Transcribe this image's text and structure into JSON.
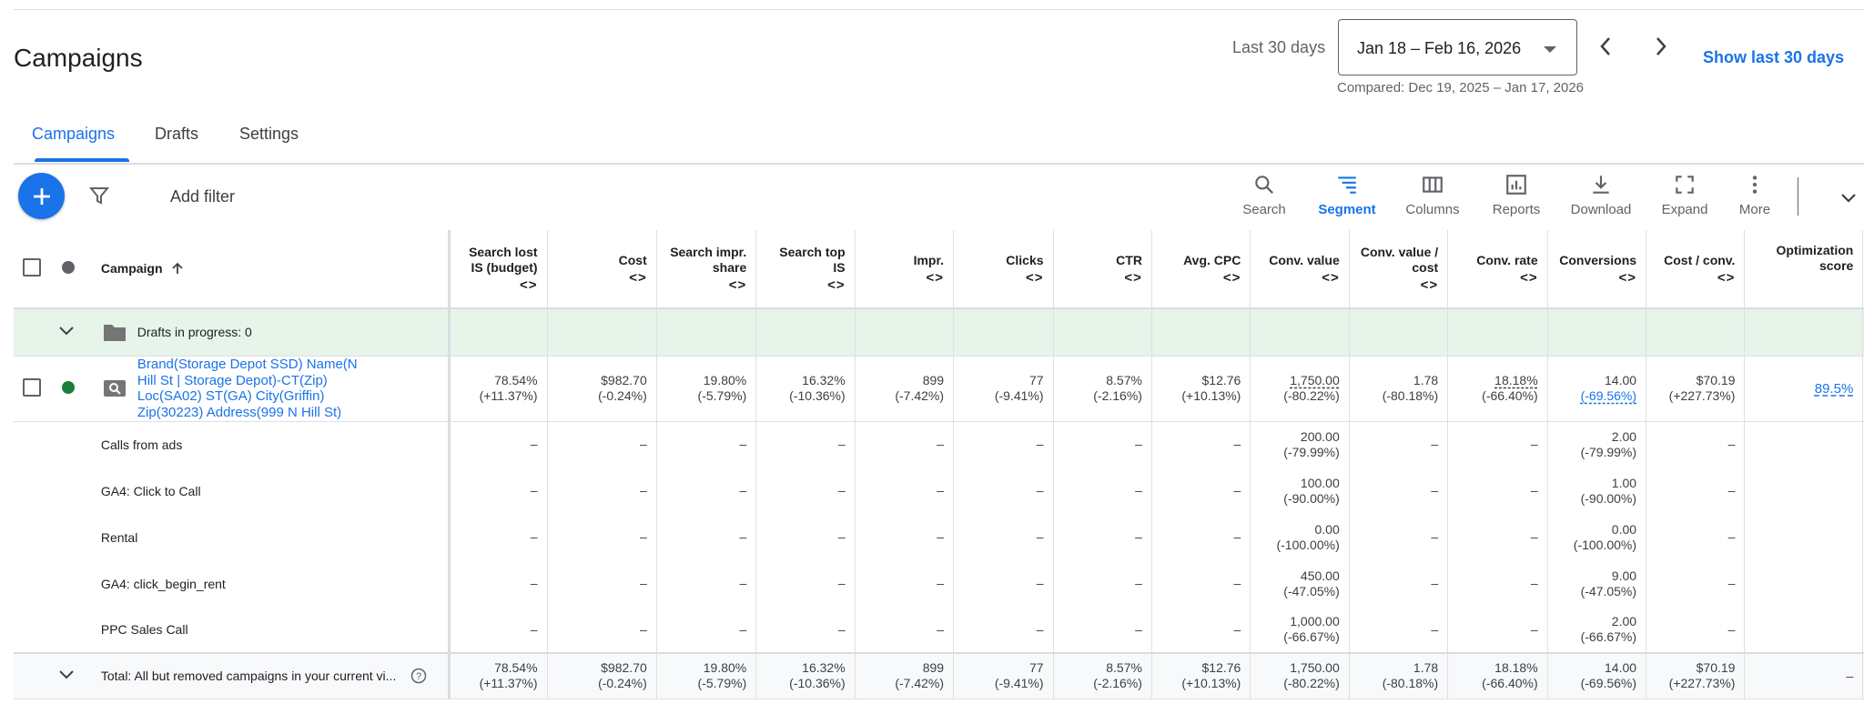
{
  "page": {
    "title": "Campaigns"
  },
  "date": {
    "range_label": "Last 30 days",
    "range_value": "Jan 18 – Feb 16, 2026",
    "compared": "Compared: Dec 19, 2025 – Jan 17, 2026",
    "show_last": "Show last 30 days"
  },
  "tabs": [
    {
      "label": "Campaigns",
      "active": true
    },
    {
      "label": "Drafts",
      "active": false
    },
    {
      "label": "Settings",
      "active": false
    }
  ],
  "toolbar": {
    "add_filter": "Add filter",
    "buttons": [
      {
        "label": "Search",
        "icon": "search-icon"
      },
      {
        "label": "Segment",
        "icon": "segment-icon"
      },
      {
        "label": "Columns",
        "icon": "columns-icon"
      },
      {
        "label": "Reports",
        "icon": "reports-icon"
      },
      {
        "label": "Download",
        "icon": "download-icon"
      },
      {
        "label": "Expand",
        "icon": "expand-icon"
      },
      {
        "label": "More",
        "icon": "more-vert-icon"
      }
    ]
  },
  "colors": {
    "accent": "#1a73e8",
    "enabled_dot": "#188038",
    "draft_bg": "#e6f4ea"
  },
  "table": {
    "campaign_header": "Campaign",
    "columns": [
      "Search lost IS (budget)",
      "Cost",
      "Search impr. share",
      "Search top IS",
      "Impr.",
      "Clicks",
      "CTR",
      "Avg. CPC",
      "Conv. value",
      "Conv. value / cost",
      "Conv. rate",
      "Conversions",
      "Cost / conv.",
      "Optimization score"
    ],
    "sort_arrows": "<>",
    "drafts_label": "Drafts in progress: 0",
    "campaign": {
      "name_lines": [
        "Brand(Storage Depot SSD) Name(N",
        "Hill St | Storage Depot)-CT(Zip)",
        "Loc(SA02) ST(GA) City(Griffin)",
        "Zip(30223) Address(999 N Hill St)"
      ],
      "values": [
        [
          "78.54%",
          "(+11.37%)"
        ],
        [
          "$982.70",
          "(-0.24%)"
        ],
        [
          "19.80%",
          "(-5.79%)"
        ],
        [
          "16.32%",
          "(-10.36%)"
        ],
        [
          "899",
          "(-7.42%)"
        ],
        [
          "77",
          "(-9.41%)"
        ],
        [
          "8.57%",
          "(-2.16%)"
        ],
        [
          "$12.76",
          "(+10.13%)"
        ],
        [
          "1,750.00",
          "(-80.22%)"
        ],
        [
          "1.78",
          "(-80.18%)"
        ],
        [
          "18.18%",
          "(-66.40%)"
        ],
        [
          "14.00",
          "(-69.56%)"
        ],
        [
          "$70.19",
          "(+227.73%)"
        ],
        [
          "89.5%",
          ""
        ]
      ]
    },
    "dash": "–",
    "conversion_rows": [
      {
        "name": "Calls from ads",
        "conv_value": [
          "200.00",
          "(-79.99%)"
        ],
        "conversions": [
          "2.00",
          "(-79.99%)"
        ]
      },
      {
        "name": "GA4: Click to Call",
        "conv_value": [
          "100.00",
          "(-90.00%)"
        ],
        "conversions": [
          "1.00",
          "(-90.00%)"
        ]
      },
      {
        "name": "Rental",
        "conv_value": [
          "0.00",
          "(-100.00%)"
        ],
        "conversions": [
          "0.00",
          "(-100.00%)"
        ]
      },
      {
        "name": "GA4: click_begin_rent",
        "conv_value": [
          "450.00",
          "(-47.05%)"
        ],
        "conversions": [
          "9.00",
          "(-47.05%)"
        ]
      },
      {
        "name": "PPC Sales Call",
        "conv_value": [
          "1,000.00",
          "(-66.67%)"
        ],
        "conversions": [
          "2.00",
          "(-66.67%)"
        ]
      }
    ],
    "total": {
      "label": "Total: All but removed campaigns in your current vi...",
      "values": [
        [
          "78.54%",
          "(+11.37%)"
        ],
        [
          "$982.70",
          "(-0.24%)"
        ],
        [
          "19.80%",
          "(-5.79%)"
        ],
        [
          "16.32%",
          "(-10.36%)"
        ],
        [
          "899",
          "(-7.42%)"
        ],
        [
          "77",
          "(-9.41%)"
        ],
        [
          "8.57%",
          "(-2.16%)"
        ],
        [
          "$12.76",
          "(+10.13%)"
        ],
        [
          "1,750.00",
          "(-80.22%)"
        ],
        [
          "1.78",
          "(-80.18%)"
        ],
        [
          "18.18%",
          "(-66.40%)"
        ],
        [
          "14.00",
          "(-69.56%)"
        ],
        [
          "$70.19",
          "(+227.73%)"
        ],
        [
          "–",
          ""
        ]
      ]
    }
  }
}
